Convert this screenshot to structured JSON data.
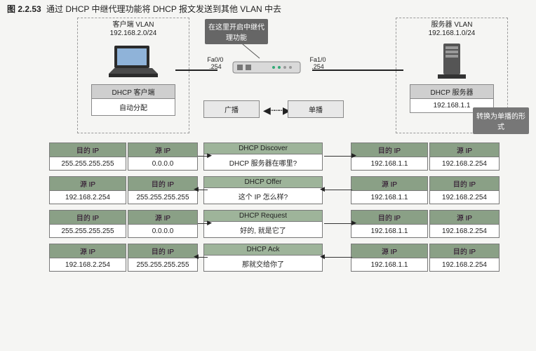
{
  "figure": {
    "number": "图 2.2.53",
    "caption": "通过 DHCP 中继代理功能将 DHCP 报文发送到其他 VLAN 中去"
  },
  "client_vlan": {
    "title": "客户端 VLAN",
    "cidr": "192.168.2.0/24",
    "box_title": "DHCP 客户端",
    "box_value": "自动分配"
  },
  "server_vlan": {
    "title": "服务器 VLAN",
    "cidr": "192.168.1.0/24",
    "box_title": "DHCP 服务器",
    "box_value": "192.168.1.1"
  },
  "relay_callout": "在这里开启中继代理功能",
  "unicast_callout": "转换为单播的形式",
  "router": {
    "port_left": {
      "name": "Fa0/0",
      "ip_last": ".254"
    },
    "port_right": {
      "name": "Fa1/0",
      "ip_last": ".254"
    }
  },
  "mid": {
    "broadcast": "广播",
    "unicast": "单播"
  },
  "labels": {
    "dst_ip": "目的 IP",
    "src_ip": "源 IP"
  },
  "addr": {
    "bcast": "255.255.255.255",
    "zero": "0.0.0.0",
    "server": "192.168.1.1",
    "relay": "192.168.2.254"
  },
  "messages": {
    "discover": {
      "title": "DHCP Discover",
      "text": "DHCP 服务器在哪里?"
    },
    "offer": {
      "title": "DHCP Offer",
      "text": "这个 IP 怎么样?"
    },
    "request": {
      "title": "DHCP Request",
      "text": "好的, 就是它了"
    },
    "ack": {
      "title": "DHCP Ack",
      "text": "那就交给你了"
    }
  },
  "rows": [
    {
      "msg": "discover",
      "direction": "right",
      "left": {
        "c1h": "dst_ip",
        "c1v": "bcast",
        "c2h": "src_ip",
        "c2v": "zero"
      },
      "right": {
        "c1h": "dst_ip",
        "c1v": "server",
        "c2h": "src_ip",
        "c2v": "relay"
      }
    },
    {
      "msg": "offer",
      "direction": "left",
      "left": {
        "c1h": "src_ip",
        "c1v": "relay",
        "c2h": "dst_ip",
        "c2v": "bcast"
      },
      "right": {
        "c1h": "src_ip",
        "c1v": "server",
        "c2h": "dst_ip",
        "c2v": "relay"
      }
    },
    {
      "msg": "request",
      "direction": "right",
      "left": {
        "c1h": "dst_ip",
        "c1v": "bcast",
        "c2h": "src_ip",
        "c2v": "zero"
      },
      "right": {
        "c1h": "dst_ip",
        "c1v": "server",
        "c2h": "src_ip",
        "c2v": "relay"
      }
    },
    {
      "msg": "ack",
      "direction": "left",
      "left": {
        "c1h": "src_ip",
        "c1v": "relay",
        "c2h": "dst_ip",
        "c2v": "bcast"
      },
      "right": {
        "c1h": "src_ip",
        "c1v": "server",
        "c2h": "dst_ip",
        "c2v": "relay"
      }
    }
  ],
  "colors": {
    "header_green": "#8aa086",
    "panel_gray": "#cfcfcf",
    "border": "#7a7a7a",
    "callout_bg": "#6f6f6f"
  }
}
